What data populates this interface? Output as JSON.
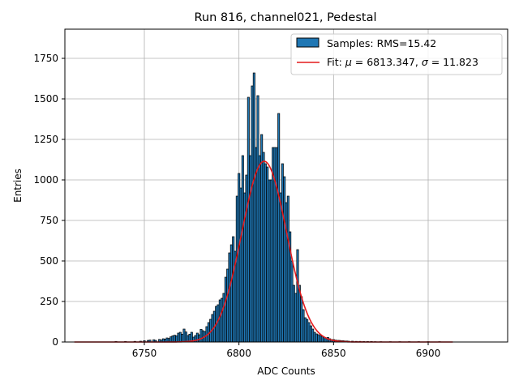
{
  "chart_data": {
    "type": "bar",
    "title": "Run 816, channel021, Pedestal",
    "xlabel": "ADC Counts",
    "ylabel": "Entries",
    "xlim": [
      6708,
      6942
    ],
    "ylim": [
      0,
      1930
    ],
    "xticks": [
      6750,
      6800,
      6850,
      6900
    ],
    "yticks": [
      0,
      250,
      500,
      750,
      1000,
      1250,
      1500,
      1750
    ],
    "grid": true,
    "legend_position": "top-right",
    "colors": {
      "bar_fill": "#1f77b4",
      "bar_edge": "#000000",
      "fit_line": "#e41a1c",
      "grid": "#b0b0b0"
    },
    "series": [
      {
        "name": "Samples: RMS=15.42",
        "kind": "histogram",
        "bin_width": 1,
        "x": [
          6735,
          6740,
          6745,
          6748,
          6750,
          6752,
          6753,
          6755,
          6756,
          6758,
          6759,
          6760,
          6761,
          6762,
          6763,
          6764,
          6765,
          6766,
          6767,
          6768,
          6769,
          6770,
          6771,
          6772,
          6773,
          6774,
          6775,
          6776,
          6777,
          6778,
          6779,
          6780,
          6781,
          6782,
          6783,
          6784,
          6785,
          6786,
          6787,
          6788,
          6789,
          6790,
          6791,
          6792,
          6793,
          6794,
          6795,
          6796,
          6797,
          6798,
          6799,
          6800,
          6801,
          6802,
          6803,
          6804,
          6805,
          6806,
          6807,
          6808,
          6809,
          6810,
          6811,
          6812,
          6813,
          6814,
          6815,
          6816,
          6817,
          6818,
          6819,
          6820,
          6821,
          6822,
          6823,
          6824,
          6825,
          6826,
          6827,
          6828,
          6829,
          6830,
          6831,
          6832,
          6833,
          6834,
          6835,
          6836,
          6837,
          6838,
          6839,
          6840,
          6841,
          6842,
          6843,
          6844,
          6845,
          6846,
          6847,
          6848,
          6849,
          6850,
          6851,
          6852,
          6853,
          6854,
          6855,
          6856,
          6857,
          6858,
          6860,
          6862,
          6864,
          6866,
          6868,
          6870,
          6872,
          6875,
          6880,
          6885,
          6890,
          6895,
          6900,
          6906
        ],
        "values": [
          3,
          3,
          4,
          5,
          8,
          10,
          12,
          14,
          10,
          16,
          12,
          20,
          18,
          25,
          22,
          32,
          38,
          42,
          38,
          55,
          60,
          48,
          80,
          62,
          40,
          48,
          60,
          30,
          40,
          55,
          45,
          78,
          70,
          65,
          95,
          120,
          140,
          170,
          190,
          220,
          230,
          260,
          270,
          300,
          400,
          450,
          550,
          600,
          650,
          560,
          900,
          1040,
          950,
          1150,
          920,
          1030,
          1510,
          1150,
          1580,
          1660,
          1200,
          1520,
          1150,
          1280,
          1170,
          1100,
          1080,
          1000,
          1000,
          1200,
          1200,
          1200,
          1410,
          920,
          1100,
          1020,
          860,
          900,
          680,
          500,
          350,
          300,
          570,
          350,
          280,
          200,
          150,
          140,
          120,
          100,
          80,
          60,
          50,
          45,
          40,
          35,
          30,
          25,
          28,
          20,
          15,
          15,
          12,
          10,
          10,
          8,
          8,
          6,
          6,
          5,
          5,
          4,
          4,
          3,
          3,
          3,
          2,
          2,
          2,
          2,
          2,
          2,
          2,
          2
        ]
      },
      {
        "name": "Fit: μ = 6813.347, σ = 11.823",
        "kind": "gaussian-fit",
        "mu": 6813.347,
        "sigma": 11.823,
        "amplitude": 1115,
        "x_range": [
          6713,
          6913
        ]
      }
    ]
  }
}
